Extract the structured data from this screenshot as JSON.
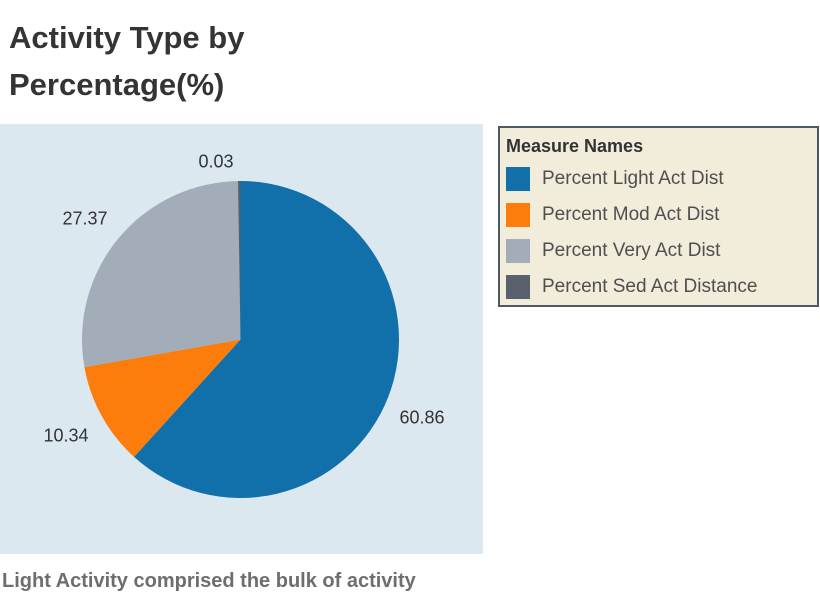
{
  "header": {
    "title_lines": [
      "Activity Type by",
      "Percentage(%)"
    ]
  },
  "chart_data": {
    "type": "pie",
    "title": "Activity Type by Percentage(%)",
    "legend_title": "Measure Names",
    "legend_position": "right",
    "plot_background": "#dce8f0",
    "start_angle_deg": 0,
    "direction": "clockwise",
    "slices": [
      {
        "name": "Percent Light Act Dist",
        "value": 60.86,
        "label": "60.86",
        "color": "#1170aa"
      },
      {
        "name": "Percent Mod Act Dist",
        "value": 10.34,
        "label": "10.34",
        "color": "#fc7d0b"
      },
      {
        "name": "Percent Very Act Dist",
        "value": 27.37,
        "label": "27.37",
        "color": "#a3acb9"
      },
      {
        "name": "Percent Sed Act Distance",
        "value": 0.03,
        "label": "0.03",
        "color": "#57606c"
      }
    ]
  },
  "caption": {
    "text": "Light Activity comprised the bulk of activity"
  }
}
